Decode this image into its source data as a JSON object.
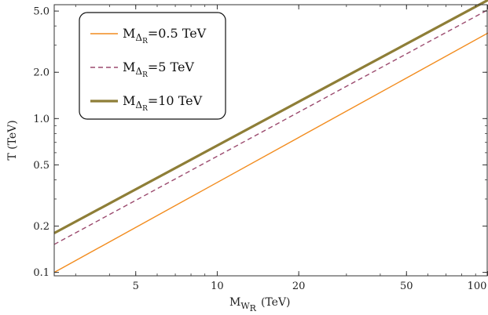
{
  "chart_data": {
    "type": "line",
    "x_scale": "log",
    "y_scale": "log",
    "xlim": [
      2.5,
      100
    ],
    "ylim": [
      0.095,
      5.5
    ],
    "x_ticks": [
      5,
      10,
      20,
      50,
      100
    ],
    "x_tick_labels": [
      "5",
      "10",
      "20",
      "50",
      "100"
    ],
    "y_ticks": [
      0.1,
      0.2,
      0.5,
      1.0,
      2.0,
      5.0
    ],
    "y_tick_labels": [
      "0.1",
      "0.2",
      "0.5",
      "1.0",
      "2.0",
      "5.0"
    ],
    "xlabel": {
      "main": "M",
      "sub": "W",
      "subsub": "R",
      "unit": "(TeV)"
    },
    "ylabel": "T (TeV)",
    "legend_position": "top-left",
    "grid": false,
    "series": [
      {
        "name": "0.5 TeV",
        "legend": {
          "main": "M",
          "sub": "Δ",
          "subsub": "R",
          "value": "=0.5 TeV"
        },
        "color": "#F28C1E",
        "style": "solid",
        "width": 1.4,
        "x": [
          2.5,
          100
        ],
        "y": [
          0.1,
          3.6
        ]
      },
      {
        "name": "5 TeV",
        "legend": {
          "main": "M",
          "sub": "Δ",
          "subsub": "R",
          "value": "=5 TeV"
        },
        "color": "#9B4A6E",
        "style": "dashed",
        "width": 1.4,
        "x": [
          2.5,
          100
        ],
        "y": [
          0.152,
          5.1
        ]
      },
      {
        "name": "10 TeV",
        "legend": {
          "main": "M",
          "sub": "Δ",
          "subsub": "R",
          "value": "=10 TeV"
        },
        "color": "#8E7E37",
        "style": "solid",
        "width": 3.2,
        "x": [
          2.5,
          100
        ],
        "y": [
          0.18,
          5.9
        ]
      }
    ]
  }
}
